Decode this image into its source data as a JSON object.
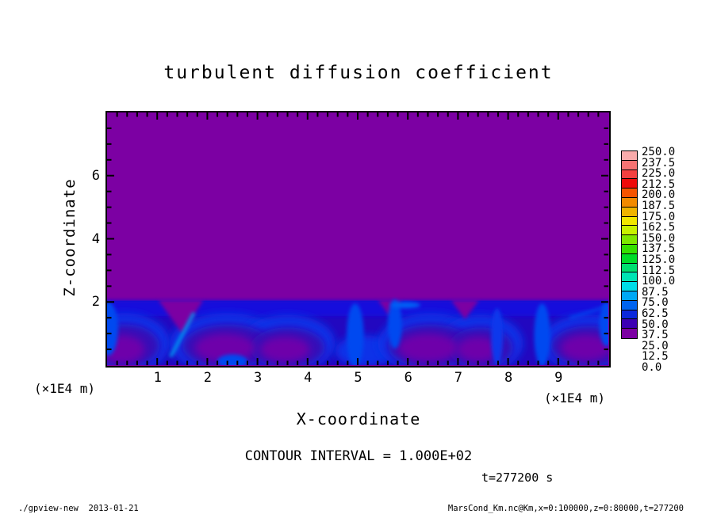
{
  "title": "turbulent diffusion coefficient",
  "axes": {
    "x": {
      "label": "X-coordinate",
      "unit": "(×1E4 m)",
      "min": 0,
      "max": 10,
      "major_ticks": [
        1,
        2,
        3,
        4,
        5,
        6,
        7,
        8,
        9
      ],
      "minor_step": 0.2
    },
    "z": {
      "label": "Z-coordinate",
      "unit": "(×1E4 m)",
      "min": 0,
      "max": 8,
      "major_ticks": [
        2,
        4,
        6
      ],
      "minor_step": 0.5
    }
  },
  "annotations": {
    "contour_note": "CONTOUR INTERVAL = 1.000E+02",
    "time_label": "t=277200 s"
  },
  "footer": {
    "left": "./gpview-new  2013-01-21",
    "right": "MarsCond_Km.nc@Km,x=0:100000,z=0:80000,t=277200"
  },
  "colorbar": {
    "min": 0.0,
    "max": 250.0,
    "step": 12.5,
    "boundary_labels_top_to_bottom": [
      "250.0",
      "237.5",
      "225.0",
      "212.5",
      "200.0",
      "187.5",
      "175.0",
      "162.5",
      "150.0",
      "137.5",
      "125.0",
      "112.5",
      "100.0",
      "87.5",
      "75.0",
      "62.5",
      "50.0",
      "37.5",
      "25.0",
      "12.5",
      "0.0"
    ],
    "colors_top_to_bottom": [
      "#F9ABAB",
      "#F57373",
      "#F54040",
      "#EE0A0A",
      "#F55300",
      "#F28A00",
      "#F0B400",
      "#F2E700",
      "#C8F200",
      "#7EE800",
      "#35E000",
      "#00DC28",
      "#00E070",
      "#00E4B4",
      "#00DCE8",
      "#00A8F5",
      "#0064F0",
      "#0B28DC",
      "#3C00B3",
      "#7C00A3"
    ]
  },
  "chart_data": {
    "type": "heatmap",
    "title": "turbulent diffusion coefficient",
    "xlabel": "X-coordinate (×1E4 m)",
    "ylabel": "Z-coordinate (×1E4 m)",
    "xlim": [
      0,
      10
    ],
    "ylim": [
      0,
      8
    ],
    "value_range": [
      0.0,
      250.0
    ],
    "contour_interval": 100.0,
    "time_seconds": 277200,
    "levels": [
      0.0,
      12.5,
      25.0,
      37.5,
      50.0,
      62.5,
      75.0,
      87.5,
      100.0,
      112.5,
      125.0,
      137.5,
      150.0,
      162.5,
      175.0,
      187.5,
      200.0,
      212.5,
      225.0,
      237.5,
      250.0
    ],
    "description": "Turbulent diffusion coefficient field: value ~0 (purple) everywhere above z=2e4 m; a turbulent boundary layer below z=2e4 m with values ~12.5-75 (blue shades) organized into convective cells with low-value purple cores, bright-blue plume walls near x=1.5, 5.0, 5.7, 7.8, 8.7 (x1e4 m), and a dark-blue capping band just below z=2e4 m.",
    "background_color": "#7C00A3",
    "field_paint": [
      {
        "shape": "rect",
        "x": -0.3,
        "z": 0,
        "w": 10.6,
        "h": 2.04,
        "color": "#2208C0"
      },
      {
        "shape": "rect",
        "x": -0.3,
        "z": 1.55,
        "w": 10.6,
        "h": 0.5,
        "color": "#1410DC",
        "blur": "f2"
      },
      {
        "shape": "ellipse",
        "cx": 0.35,
        "cz": 0.7,
        "rx": 0.9,
        "rz": 0.95,
        "color": "#0830E8",
        "blur": "f4"
      },
      {
        "shape": "ellipse",
        "cx": 2.4,
        "cz": 0.7,
        "rx": 1.15,
        "rz": 0.95,
        "color": "#0830E8",
        "blur": "f4"
      },
      {
        "shape": "ellipse",
        "cx": 3.6,
        "cz": 0.7,
        "rx": 0.95,
        "rz": 0.9,
        "color": "#0830E8",
        "blur": "f4"
      },
      {
        "shape": "ellipse",
        "cx": 5.15,
        "cz": 0.45,
        "rx": 0.6,
        "rz": 0.5,
        "color": "#0830E8",
        "blur": "f4"
      },
      {
        "shape": "ellipse",
        "cx": 6.45,
        "cz": 0.7,
        "rx": 1.05,
        "rz": 0.95,
        "color": "#0830E8",
        "blur": "f4"
      },
      {
        "shape": "ellipse",
        "cx": 7.45,
        "cz": 0.7,
        "rx": 0.85,
        "rz": 0.9,
        "color": "#0830E8",
        "blur": "f4"
      },
      {
        "shape": "ellipse",
        "cx": 9.6,
        "cz": 0.7,
        "rx": 0.95,
        "rz": 0.9,
        "color": "#0830E8",
        "blur": "f4"
      },
      {
        "shape": "ellipse",
        "cx": 0.35,
        "cz": 0.6,
        "rx": 0.7,
        "rz": 0.7,
        "color": "#3408B8",
        "blur": "f4"
      },
      {
        "shape": "ellipse",
        "cx": 2.4,
        "cz": 0.6,
        "rx": 0.9,
        "rz": 0.7,
        "color": "#3408B8",
        "blur": "f4"
      },
      {
        "shape": "ellipse",
        "cx": 3.6,
        "cz": 0.55,
        "rx": 0.75,
        "rz": 0.65,
        "color": "#3408B8",
        "blur": "f4"
      },
      {
        "shape": "ellipse",
        "cx": 6.45,
        "cz": 0.6,
        "rx": 0.85,
        "rz": 0.7,
        "color": "#3408B8",
        "blur": "f4"
      },
      {
        "shape": "ellipse",
        "cx": 7.45,
        "cz": 0.55,
        "rx": 0.65,
        "rz": 0.65,
        "color": "#3408B8",
        "blur": "f4"
      },
      {
        "shape": "ellipse",
        "cx": 9.6,
        "cz": 0.6,
        "rx": 0.75,
        "rz": 0.65,
        "color": "#3408B8",
        "blur": "f4"
      },
      {
        "shape": "ellipse",
        "cx": 0.3,
        "cz": 0.5,
        "rx": 0.45,
        "rz": 0.45,
        "color": "#6E06AA",
        "blur": "f4"
      },
      {
        "shape": "ellipse",
        "cx": 2.35,
        "cz": 0.55,
        "rx": 0.6,
        "rz": 0.45,
        "color": "#6E06AA",
        "blur": "f4"
      },
      {
        "shape": "ellipse",
        "cx": 3.55,
        "cz": 0.5,
        "rx": 0.5,
        "rz": 0.4,
        "color": "#6E06AA",
        "blur": "f4"
      },
      {
        "shape": "ellipse",
        "cx": 6.4,
        "cz": 0.55,
        "rx": 0.6,
        "rz": 0.45,
        "color": "#6E06AA",
        "blur": "f4"
      },
      {
        "shape": "ellipse",
        "cx": 7.4,
        "cz": 0.5,
        "rx": 0.42,
        "rz": 0.4,
        "color": "#6E06AA",
        "blur": "f4"
      },
      {
        "shape": "ellipse",
        "cx": 9.55,
        "cz": 0.55,
        "rx": 0.5,
        "rz": 0.42,
        "color": "#6E06AA",
        "blur": "f4"
      },
      {
        "shape": "poly",
        "pts": [
          [
            1.02,
            2.06
          ],
          [
            1.92,
            2.06
          ],
          [
            1.5,
            1.0
          ]
        ],
        "color": "#7C00A3",
        "blur": "f2"
      },
      {
        "shape": "poly",
        "pts": [
          [
            5.4,
            2.06
          ],
          [
            5.88,
            2.06
          ],
          [
            5.64,
            1.55
          ]
        ],
        "color": "#7C00A3",
        "blur": "f2"
      },
      {
        "shape": "poly",
        "pts": [
          [
            6.86,
            2.06
          ],
          [
            7.42,
            2.06
          ],
          [
            7.14,
            1.45
          ]
        ],
        "color": "#7C00A3",
        "blur": "f2"
      },
      {
        "shape": "ellipse",
        "cx": 4.95,
        "cz": 0.95,
        "rx": 0.17,
        "rz": 1.0,
        "color": "#0448F0",
        "blur": "f2"
      },
      {
        "shape": "ellipse",
        "cx": 5.74,
        "cz": 1.3,
        "rx": 0.14,
        "rz": 0.78,
        "color": "#0448F0",
        "blur": "f2"
      },
      {
        "shape": "ellipse",
        "cx": 8.68,
        "cz": 0.95,
        "rx": 0.16,
        "rz": 1.0,
        "color": "#0448F0",
        "blur": "f2"
      },
      {
        "shape": "ellipse",
        "cx": 7.78,
        "cz": 0.9,
        "rx": 0.12,
        "rz": 0.9,
        "color": "#0838EC",
        "blur": "f2"
      },
      {
        "shape": "ellipse",
        "cx": 0.02,
        "cz": 1.15,
        "rx": 0.2,
        "rz": 0.85,
        "color": "#0448F0",
        "blur": "f2"
      },
      {
        "shape": "ellipse",
        "cx": 9.97,
        "cz": 1.3,
        "rx": 0.15,
        "rz": 0.7,
        "color": "#0448F0",
        "blur": "f2"
      },
      {
        "shape": "ellipse",
        "cx": 2.5,
        "cz": 0.12,
        "rx": 0.3,
        "rz": 0.22,
        "color": "#0648F0",
        "blur": "f2"
      },
      {
        "shape": "ellipse",
        "cx": 5.95,
        "cz": 1.9,
        "rx": 0.3,
        "rz": 0.1,
        "color": "#0560F5",
        "blur": "f2"
      },
      {
        "shape": "line",
        "x1": 1.28,
        "z1": 0.3,
        "x2": 1.72,
        "z2": 1.62,
        "w": 4,
        "color": "#0096F0",
        "blur": "f2"
      },
      {
        "shape": "line",
        "x1": 9.25,
        "z1": 1.5,
        "x2": 9.97,
        "z2": 1.86,
        "w": 3,
        "color": "#0548F0",
        "blur": "f2"
      }
    ]
  }
}
